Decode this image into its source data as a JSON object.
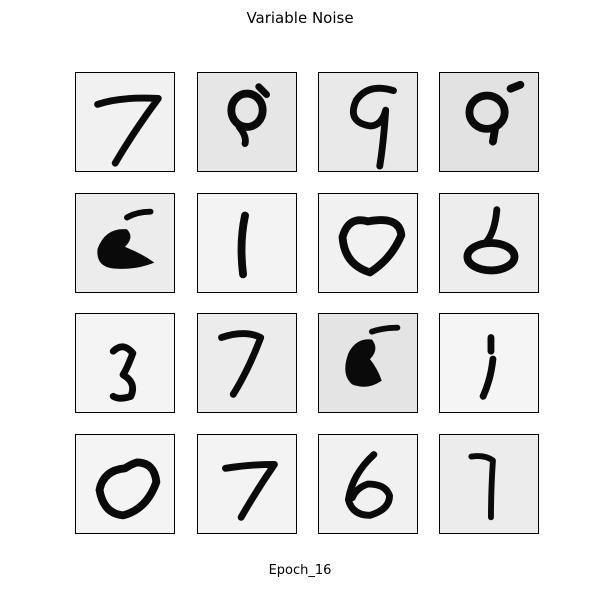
{
  "figure": {
    "title": "Variable Noise",
    "caption": "Epoch_16"
  },
  "grid": {
    "rows": 4,
    "cols": 4,
    "digits": [
      {
        "digit": "7",
        "bg": "#f1f1f1"
      },
      {
        "digit": "9",
        "bg": "#e6e6e6"
      },
      {
        "digit": "9",
        "bg": "#e9e9e9"
      },
      {
        "digit": "9",
        "bg": "#e2e2e2"
      },
      {
        "digit": "blob",
        "bg": "#ececec"
      },
      {
        "digit": "1",
        "bg": "#f3f3f3"
      },
      {
        "digit": "0",
        "bg": "#f1f1f1"
      },
      {
        "digit": "8",
        "bg": "#ededed"
      },
      {
        "digit": "3",
        "bg": "#f4f4f4"
      },
      {
        "digit": "7",
        "bg": "#ececec"
      },
      {
        "digit": "blob",
        "bg": "#e4e4e4"
      },
      {
        "digit": "1",
        "bg": "#f5f5f5"
      },
      {
        "digit": "0",
        "bg": "#f4f4f4"
      },
      {
        "digit": "7",
        "bg": "#f3f3f3"
      },
      {
        "digit": "6",
        "bg": "#f1f1f1"
      },
      {
        "digit": "7",
        "bg": "#ececec"
      }
    ]
  }
}
